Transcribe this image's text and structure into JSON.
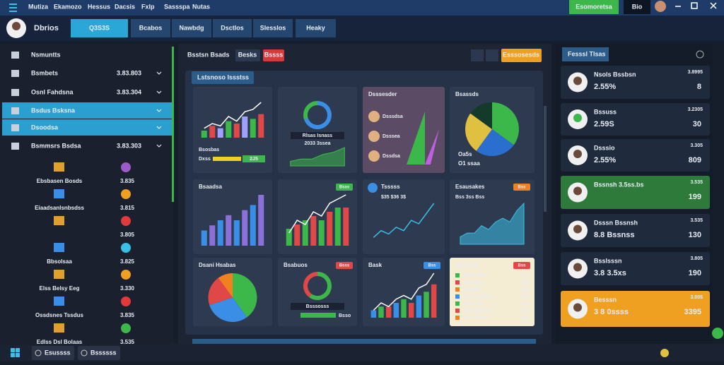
{
  "topbar": {
    "menu": [
      "Mutiza",
      "Ekamozo",
      "Hessus",
      "Dacsis",
      "Fxlp",
      "Sassspa",
      "Nutas"
    ],
    "action": "Esomoretsa",
    "window": "Bio"
  },
  "header": {
    "title": "Dbrios",
    "tabs": [
      "Q3S3S",
      "Bcabos",
      "Nawbdg",
      "Dsctlos",
      "Slesslos",
      "Heaky"
    ]
  },
  "sidebar": {
    "items": [
      {
        "label": "Nsmuntts"
      },
      {
        "label": "Bsmbets",
        "value": "3.83.803"
      },
      {
        "label": "Osnl Fahdsna",
        "value": "3.83.304"
      },
      {
        "label": "Bsdus Bsksna",
        "active": true
      },
      {
        "label": "Dsoodsa",
        "active": true
      },
      {
        "label": "Bsmmsrs Bsdsa",
        "value": "3.83.303"
      }
    ],
    "sub": [
      {
        "label": "Ebsbasen Bosds",
        "value": "3.835",
        "color": "#9b5bc9"
      },
      {
        "label": "Eiaadsanlsnbsdss",
        "value": "3.815",
        "color": "#f0a020"
      },
      {
        "value": "3.805",
        "color": "#e03a3a"
      },
      {
        "label": "Bbsolsaa",
        "value": "3.825",
        "color": "#3ac0e6"
      },
      {
        "label": "Elss Belsy Eeg",
        "value": "3.330",
        "color": "#f0a020"
      },
      {
        "label": "Ossdsnes Tssdus",
        "value": "3.835",
        "color": "#e03a3a"
      },
      {
        "label": "Edlss Dsl Bolaas",
        "value": "3.535",
        "color": "#3cb84a"
      }
    ]
  },
  "toolbar": {
    "title": "Bsstsn Bsads",
    "button": "Besks",
    "alert": "Bssss",
    "action": "Esssosesds"
  },
  "panel": {
    "title": "Lstsnoso Issstss"
  },
  "widgets": [
    {
      "kind": "combo",
      "values": [
        3,
        5,
        4,
        7,
        6,
        9,
        8,
        10
      ],
      "colors": [
        "#3cb84a",
        "#e04848",
        "#a0a0ff"
      ],
      "line": [
        4,
        6,
        5,
        9,
        7,
        11,
        12,
        15
      ],
      "line_color": "#ffffff",
      "label": "Bsosbas",
      "footer": "Dxss",
      "footer_badge": "2J5"
    },
    {
      "kind": "donut",
      "values": [
        70,
        30
      ],
      "colors": [
        "#3a8ee6",
        "#3cb84a"
      ],
      "label": "Rlsas Isnass",
      "label2": "2033 3ssea",
      "area": [
        2,
        3,
        3,
        5,
        6,
        8
      ]
    },
    {
      "kind": "list",
      "title": "Dsssesder",
      "bg": "#5c4b64",
      "items": [
        "Dsssdsa",
        "Dsssea",
        "Dssdsa"
      ]
    },
    {
      "kind": "pie",
      "title": "Bsassds",
      "values": [
        35,
        25,
        25,
        15
      ],
      "colors": [
        "#3cb84a",
        "#2a6fd0",
        "#e0c040",
        "#133a2a"
      ],
      "legend": [
        "Oa5s",
        "O1 ssaa"
      ]
    },
    {
      "kind": "bar",
      "title": "Bsaadsa",
      "values": [
        3,
        4,
        5,
        6,
        5,
        7,
        8,
        10
      ],
      "colors": [
        "#3a8ee6",
        "#8a70d8"
      ]
    },
    {
      "kind": "combo",
      "badge": "Bsas",
      "badge_color": "#3cb84a",
      "values": [
        4,
        5,
        6,
        7,
        6,
        8,
        9,
        9
      ],
      "colors": [
        "#3cb84a",
        "#e04848"
      ],
      "line": [
        3,
        6,
        5,
        8,
        7,
        10,
        11,
        12
      ],
      "line_color": "#ffffff"
    },
    {
      "kind": "line",
      "title": "Tsssss",
      "label2": "$35 $36 3$",
      "values": [
        2,
        4,
        3,
        5,
        4,
        7,
        6,
        9,
        12
      ],
      "line_color": "#3ac0e6"
    },
    {
      "kind": "area",
      "title": "Esausakes",
      "label2": "Bss 3ss Bss",
      "badge": "Bss",
      "badge_color": "#f08020",
      "values": [
        2,
        3,
        3,
        5,
        4,
        6,
        7,
        6,
        9,
        11
      ],
      "line_color": "#3ac0e6"
    },
    {
      "kind": "pie",
      "title": "Dsani Hsabas",
      "values": [
        40,
        30,
        20,
        10
      ],
      "colors": [
        "#3cb84a",
        "#3a8ee6",
        "#e04848",
        "#f08020"
      ]
    },
    {
      "kind": "donut",
      "title": "Bsabuos",
      "badge": "Bsss",
      "badge_color": "#e04848",
      "values": [
        60,
        40
      ],
      "colors": [
        "#3cb84a",
        "#e04848"
      ],
      "label": "Bsssosss",
      "footer": "Bsso"
    },
    {
      "kind": "combo",
      "title": "Bask",
      "badge": "Bss",
      "badge_color": "#3a8ee6",
      "values": [
        2,
        3,
        3,
        4,
        5,
        4,
        6,
        7,
        9
      ],
      "colors": [
        "#3a8ee6",
        "#3cb84a",
        "#e04848"
      ],
      "line": [
        2,
        4,
        3,
        5,
        6,
        5,
        8,
        9,
        12
      ],
      "line_color": "#ffffff"
    },
    {
      "kind": "table",
      "title": "Nsssslst",
      "bg": "#f5ecd4",
      "badge": "Bss",
      "badge_color": "#e04848",
      "rows": [
        [
          "Bssss Bsss",
          "3.33"
        ],
        [
          "Bsssssss",
          "3.35"
        ],
        [
          "Bsssdss",
          "3.35"
        ],
        [
          "Bssssl Bssss",
          "3.30"
        ],
        [
          "Bsssssss",
          "3.33"
        ],
        [
          "Bsssdss Bsss",
          "3.35"
        ],
        [
          "Bsss Bssss",
          "3.35"
        ]
      ],
      "colors": [
        "#3cb84a",
        "#e04848",
        "#f08020",
        "#3a8ee6"
      ]
    }
  ],
  "right": {
    "title": "Fesssl Tlsas",
    "cards": [
      {
        "name": "Nsols Bssbsn",
        "value": "2.55%",
        "stat": "3.8995",
        "small": "8",
        "value_color": "#3cb84a"
      },
      {
        "name": "Bssuss",
        "value": "2.59S",
        "stat": "3.2305",
        "small": "30",
        "value_color": "#f0d020"
      },
      {
        "name": "Dsssio",
        "value": "2.55%",
        "stat": "3.305",
        "small": "809",
        "value_color": "#3cb84a"
      },
      {
        "name": "Bssnsh 3.5ss.bs",
        "stat": "3.535",
        "small": "199",
        "bg": "#2e7a3a"
      },
      {
        "name": "Dsssn Bssnsh",
        "value": "8.8 Bssnss",
        "stat": "3.535",
        "small": "130",
        "value_color": "#f0d020"
      },
      {
        "name": "Bsslsssn",
        "value": "3.8 3.5xs",
        "stat": "3.805",
        "small": "190",
        "value_color": "#f0d020"
      },
      {
        "name": "Besssn",
        "value": "3 8 0ssss",
        "stat": "3.005",
        "small": "3395",
        "bg": "#f0a020",
        "value_color": "#fff6c0"
      }
    ]
  },
  "taskbar": [
    "Esussss",
    "Bssssss"
  ]
}
